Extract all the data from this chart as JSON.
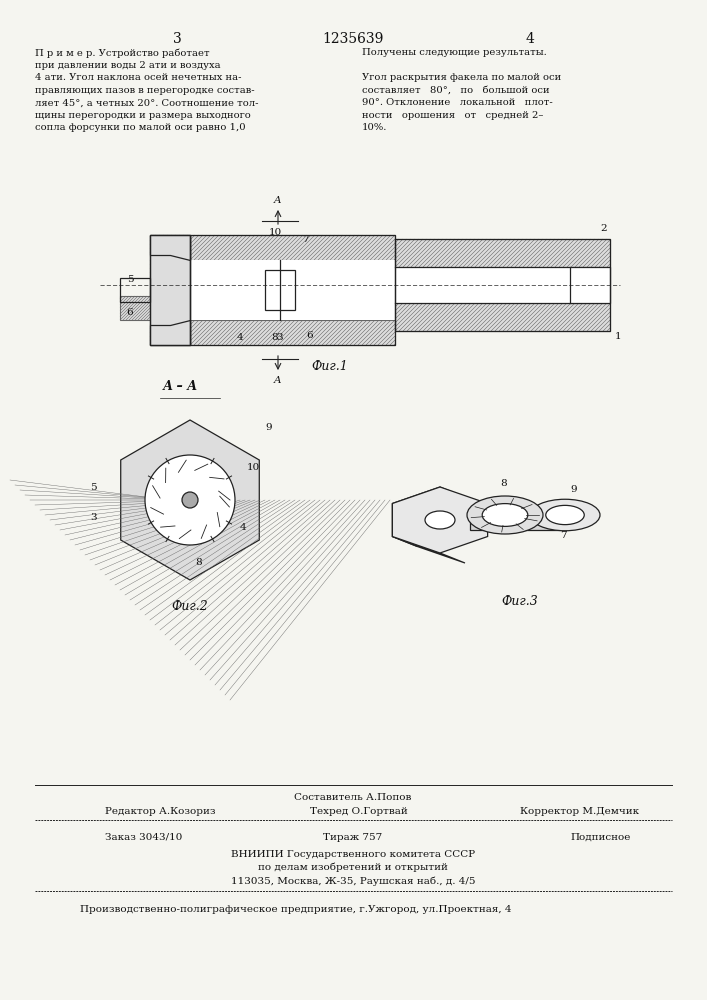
{
  "bg_color": "#f5f5f0",
  "page_width": 7.07,
  "page_height": 10.0,
  "header": {
    "left_page_num": "3",
    "center_patent": "1235639",
    "right_page_num": "4"
  },
  "left_column_text": "П р и м е р. Устройство работает\nпри давлении воды 2 ати и воздуха\n4 ати. Угол наклона осей нечетных на-\nправляющих пазов в перегородке состав-\nляет 45°, а четных 20°. Соотношение тол-\nщины перегородки и размера выходного\nсопла форсунки по малой оси равно 1,0",
  "right_column_text": "Получены следующие результаты.\n\nУгол раскрытия факела по малой оси\nсоставляет   80°,   по   большой оси\n90°. Отклонение   локальной   плот-\nности   орошения   от   средней 2–\n10%.",
  "fig1_caption": "Фиг.1",
  "fig2_caption": "Фиг.2",
  "fig3_caption": "Фиг.3",
  "footer_lines": [
    "Составитель А.Попов",
    "Редактор А.Козориз          Техред О.Гортвай          Корректор М.Демчик",
    "───────────────────────────────────────────────────────────────────────────────",
    "Заказ 3043/10          Тираж 757          Подписное",
    "      ВНИИПИ Государственного комитета СССР",
    "         по делам изобретений и открытий",
    "      113035, Москва, Ж-35, Раушская наб., д. 4/5",
    "───────────────────────────────────────────────────────────────────────────────",
    "Производственно-полиграфическое предприятие, г.Ужгород, ул.Проектная, 4"
  ],
  "line_color": "#222222",
  "hatch_color": "#444444",
  "text_color": "#111111"
}
